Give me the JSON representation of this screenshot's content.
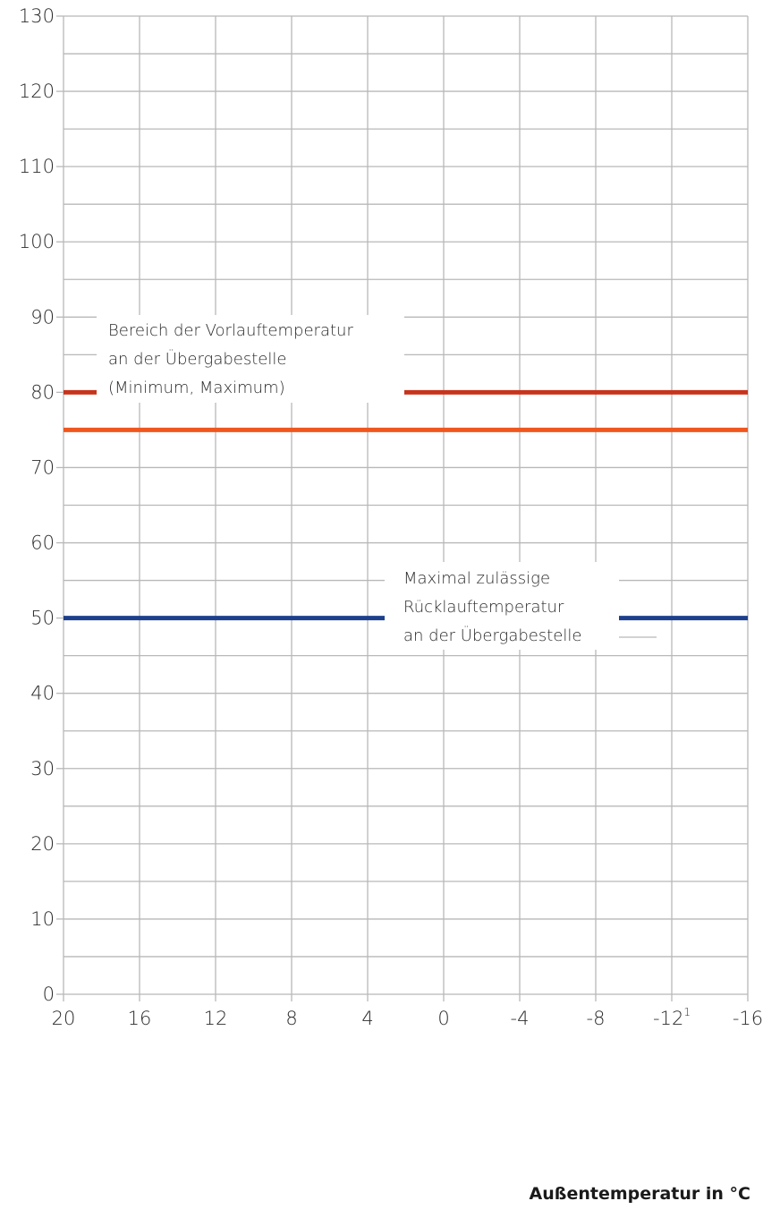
{
  "chart_data": {
    "type": "line",
    "xlabel": "Außentemperatur in °C",
    "ylabel": "",
    "x_ticks": [
      "20",
      "16",
      "12",
      "8",
      "4",
      "0",
      "-4",
      "-8",
      "-12",
      "-16"
    ],
    "x_tick_values": [
      20,
      16,
      12,
      8,
      4,
      0,
      -4,
      -8,
      -12,
      -16
    ],
    "x_footnote": {
      "tick": "-12",
      "mark": "1"
    },
    "xlim": [
      20,
      -16
    ],
    "y_ticks": [
      0,
      10,
      20,
      30,
      40,
      50,
      60,
      70,
      80,
      90,
      100,
      110,
      120,
      130
    ],
    "ylim": [
      0,
      130
    ],
    "grid": true,
    "series": [
      {
        "color": "#c8341c",
        "x": [
          20,
          -16
        ],
        "y": [
          80,
          80
        ]
      },
      {
        "color": "#f0561e",
        "x": [
          20,
          -16
        ],
        "y": [
          75,
          75
        ]
      },
      {
        "color": "#1e3f8c",
        "x": [
          20,
          -16
        ],
        "y": [
          50,
          50
        ]
      }
    ],
    "annotations": [
      {
        "lines": [
          "Bereich der Vorlauftemperatur",
          "an der Übergabestelle",
          "(Minimum, Maximum)"
        ]
      },
      {
        "lines": [
          "Maximal zulässige",
          "Rücklauftemperatur",
          "an der Übergabestelle"
        ]
      }
    ]
  }
}
